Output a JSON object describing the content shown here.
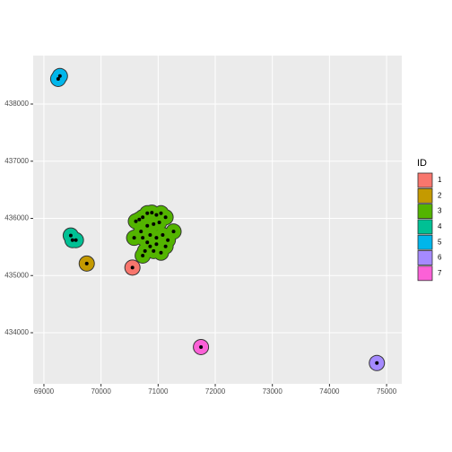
{
  "chart_data": {
    "type": "scatter",
    "legend_title": "ID",
    "legend_position": "right",
    "grid": true,
    "xlim": [
      68812,
      75266
    ],
    "ylim": [
      433106,
      438847
    ],
    "xticks": [
      69000,
      70000,
      71000,
      72000,
      73000,
      74000,
      75000
    ],
    "yticks": [
      434000,
      435000,
      436000,
      437000,
      438000
    ],
    "series": [
      {
        "name": "1",
        "color": "#F8766D",
        "x": [
          70550
        ],
        "values": [
          435140
        ]
      },
      {
        "name": "2",
        "color": "#C49A00",
        "x": [
          69750
        ],
        "values": [
          435210
        ]
      },
      {
        "name": "3",
        "color": "#53B400",
        "x": [
          70610,
          70670,
          70730,
          70810,
          70890,
          70970,
          71050,
          71130,
          71020,
          70920,
          70810,
          70700,
          70580,
          70730,
          70860,
          70970,
          71080,
          71170,
          71270,
          71130,
          70970,
          70860,
          70770,
          70730,
          70920,
          71050,
          70810
        ],
        "values": [
          435950,
          435980,
          436020,
          436090,
          436100,
          436060,
          436090,
          436020,
          435930,
          435900,
          435870,
          435770,
          435660,
          435660,
          435710,
          435660,
          435710,
          435620,
          435770,
          435510,
          435550,
          435510,
          435430,
          435350,
          435430,
          435400,
          435580
        ]
      },
      {
        "name": "4",
        "color": "#00C094",
        "x": [
          69470,
          69500,
          69560
        ],
        "values": [
          435700,
          435620,
          435620
        ]
      },
      {
        "name": "5",
        "color": "#00B6EB",
        "x": [
          69250,
          69280
        ],
        "values": [
          438440,
          438490
        ]
      },
      {
        "name": "6",
        "color": "#A58AFF",
        "x": [
          74830
        ],
        "values": [
          433470
        ]
      },
      {
        "name": "7",
        "color": "#FB61D7",
        "x": [
          71750
        ],
        "values": [
          433750
        ]
      }
    ]
  }
}
